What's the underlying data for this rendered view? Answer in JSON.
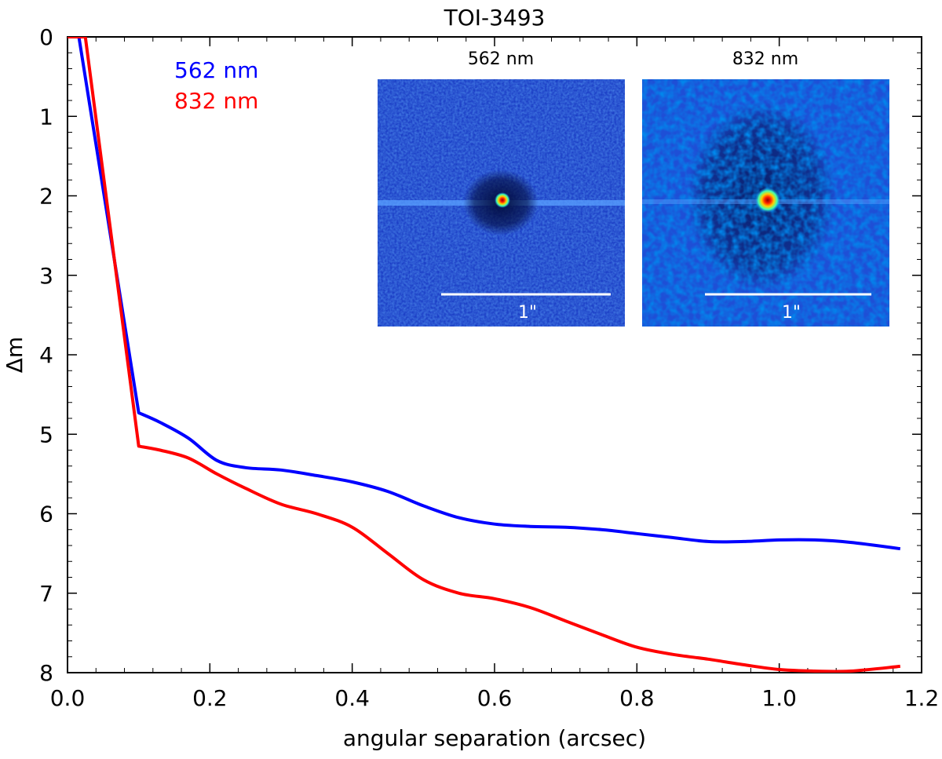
{
  "chart_data": {
    "type": "line",
    "title": "TOI-3493",
    "xlabel": "angular separation (arcsec)",
    "ylabel": "Δm",
    "xlim": [
      0.0,
      1.2
    ],
    "ylim": [
      0,
      8
    ],
    "y_inverted": true,
    "grid": false,
    "legend_placement": "top-left",
    "x_ticks": [
      0.0,
      0.2,
      0.4,
      0.6,
      0.8,
      1.0,
      1.2
    ],
    "x_tick_labels": [
      "0.0",
      "0.2",
      "0.4",
      "0.6",
      "0.8",
      "1.0",
      "1.2"
    ],
    "y_ticks": [
      0,
      1,
      2,
      3,
      4,
      5,
      6,
      7,
      8
    ],
    "y_tick_labels": [
      "0",
      "1",
      "2",
      "3",
      "4",
      "5",
      "6",
      "7",
      "8"
    ],
    "series": [
      {
        "name": "562 nm",
        "color": "#0000ff",
        "x": [
          0.0,
          0.016,
          0.1,
          0.13,
          0.17,
          0.21,
          0.25,
          0.3,
          0.35,
          0.4,
          0.45,
          0.5,
          0.55,
          0.6,
          0.65,
          0.7,
          0.75,
          0.8,
          0.85,
          0.9,
          0.95,
          1.0,
          1.05,
          1.1,
          1.17
        ],
        "y": [
          0.0,
          0.0,
          4.73,
          4.85,
          5.05,
          5.33,
          5.42,
          5.45,
          5.52,
          5.6,
          5.72,
          5.9,
          6.05,
          6.13,
          6.16,
          6.17,
          6.2,
          6.25,
          6.3,
          6.35,
          6.35,
          6.33,
          6.33,
          6.36,
          6.44
        ]
      },
      {
        "name": "832 nm",
        "color": "#ff0000",
        "x": [
          0.0,
          0.025,
          0.1,
          0.13,
          0.17,
          0.21,
          0.25,
          0.3,
          0.35,
          0.4,
          0.45,
          0.5,
          0.55,
          0.6,
          0.65,
          0.7,
          0.75,
          0.8,
          0.85,
          0.9,
          0.95,
          1.0,
          1.05,
          1.1,
          1.17
        ],
        "y": [
          0.0,
          0.0,
          5.15,
          5.2,
          5.3,
          5.5,
          5.68,
          5.88,
          6.0,
          6.17,
          6.5,
          6.83,
          7.0,
          7.07,
          7.18,
          7.35,
          7.52,
          7.68,
          7.77,
          7.83,
          7.9,
          7.96,
          7.98,
          7.98,
          7.92
        ]
      }
    ],
    "legend": [
      {
        "label": "562 nm",
        "color": "#0000ff"
      },
      {
        "label": "832 nm",
        "color": "#ff0000"
      }
    ],
    "insets": [
      {
        "title": "562 nm",
        "scale_label": "1\""
      },
      {
        "title": "832 nm",
        "scale_label": "1\""
      }
    ]
  }
}
